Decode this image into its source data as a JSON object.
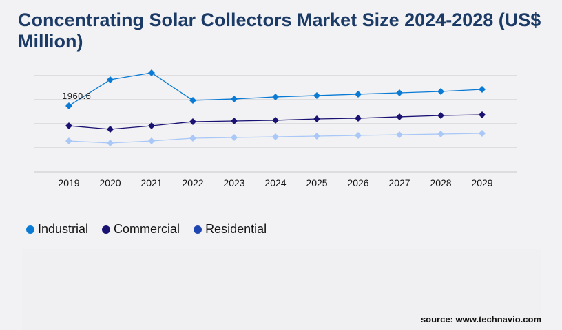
{
  "title": "Concentrating Solar Collectors Market Size 2024-2028 (US$ Million)",
  "source": "source: www.technavio.com",
  "chart_data": {
    "type": "line",
    "title": "Concentrating Solar Collectors Market Size 2024-2028 (US$ Million)",
    "x": [
      "2019",
      "2020",
      "2021",
      "2022",
      "2023",
      "2024",
      "2025",
      "2026",
      "2027",
      "2028",
      "2029"
    ],
    "ylim": [
      0,
      2858
    ],
    "grid": true,
    "legend_position": "bottom-left",
    "annotations": [
      {
        "series": "Industrial",
        "x": "2019",
        "text": "1960.6"
      }
    ],
    "series": [
      {
        "name": "Industrial",
        "color": "#0a7bd4",
        "marker_color": "#0a7bd4",
        "values": [
          1960.6,
          2736,
          2940,
          2124,
          2165,
          2226,
          2267,
          2308,
          2348,
          2389,
          2450
        ]
      },
      {
        "name": "Commercial",
        "color": "#1a1273",
        "marker_color": "#1a1273",
        "values": [
          1368,
          1266,
          1368,
          1491,
          1511,
          1532,
          1572,
          1593,
          1634,
          1674,
          1695
        ]
      },
      {
        "name": "Residential",
        "color": "#a9c8f7",
        "marker_color": "#1f45b0",
        "values": [
          919,
          858,
          919,
          1001,
          1021,
          1041,
          1062,
          1082,
          1103,
          1123,
          1144
        ]
      }
    ]
  }
}
